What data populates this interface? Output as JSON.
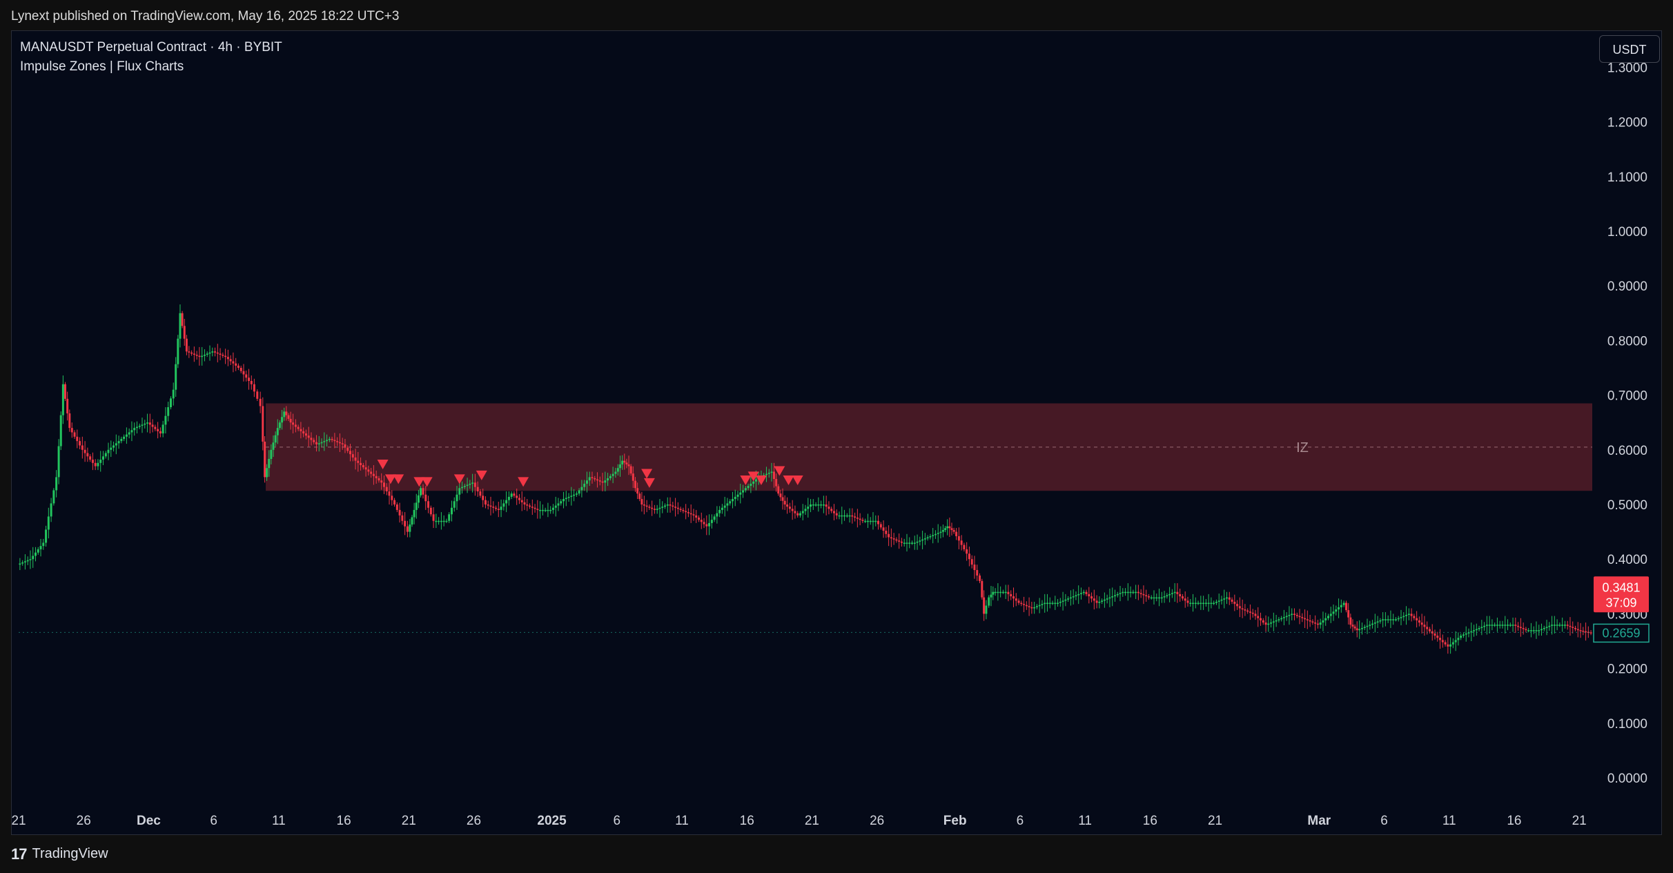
{
  "header": {
    "published_text": "Lynext published on TradingView.com, May 16, 2025 18:22 UTC+3"
  },
  "chart_legend": {
    "symbol_line": "MANAUSDT Perpetual Contract · 4h · BYBIT",
    "indicator_line": "Impulse Zones | Flux Charts"
  },
  "currency_button": "USDT",
  "footer": {
    "logo_glyph": "17",
    "brand": "TradingView"
  },
  "colors": {
    "background": "#050a18",
    "up": "#089981",
    "down": "#f23645",
    "zone_fill": "#4a1a26",
    "price_label_red": "#f23645",
    "price_label_green": "#22ab94"
  },
  "chart_data": {
    "type": "line",
    "title": "MANAUSDT Perpetual Contract · 4h · BYBIT",
    "ylim": [
      -0.05,
      1.32
    ],
    "y_ticks": [
      "1.3000",
      "1.2000",
      "1.1000",
      "1.0000",
      "0.9000",
      "0.8000",
      "0.7000",
      "0.6000",
      "0.5000",
      "0.4000",
      "0.3000",
      "0.2000",
      "0.1000",
      "0.0000"
    ],
    "y_tick_values": [
      1.3,
      1.2,
      1.1,
      1.0,
      0.9,
      0.8,
      0.7,
      0.6,
      0.5,
      0.4,
      0.3,
      0.2,
      0.1,
      0.0
    ],
    "x_ticks": [
      "21",
      "26",
      "Dec",
      "6",
      "11",
      "16",
      "21",
      "26",
      "2025",
      "6",
      "11",
      "16",
      "21",
      "26",
      "Feb",
      "6",
      "11",
      "16",
      "21",
      "Mar",
      "6",
      "11",
      "16",
      "21"
    ],
    "x_tick_days": [
      0,
      5,
      10,
      15,
      20,
      25,
      30,
      35,
      41,
      46,
      51,
      56,
      61,
      66,
      72,
      77,
      82,
      87,
      92,
      100,
      105,
      110,
      115,
      120
    ],
    "x_domain_days": [
      0,
      121
    ],
    "x_axis_note": "days since Nov 21, 2024",
    "price_series": [
      [
        0,
        0.39
      ],
      [
        1,
        0.4
      ],
      [
        2,
        0.43
      ],
      [
        3,
        0.55
      ],
      [
        3.5,
        0.72
      ],
      [
        4,
        0.64
      ],
      [
        5,
        0.6
      ],
      [
        6,
        0.57
      ],
      [
        7,
        0.6
      ],
      [
        8,
        0.62
      ],
      [
        9,
        0.64
      ],
      [
        10,
        0.65
      ],
      [
        11,
        0.63
      ],
      [
        12,
        0.71
      ],
      [
        12.5,
        0.85
      ],
      [
        13,
        0.78
      ],
      [
        14,
        0.77
      ],
      [
        15,
        0.78
      ],
      [
        16,
        0.77
      ],
      [
        17,
        0.75
      ],
      [
        18,
        0.72
      ],
      [
        18.7,
        0.68
      ],
      [
        19,
        0.55
      ],
      [
        19.5,
        0.6
      ],
      [
        20,
        0.64
      ],
      [
        20.5,
        0.67
      ],
      [
        21,
        0.65
      ],
      [
        22,
        0.63
      ],
      [
        23,
        0.61
      ],
      [
        24,
        0.62
      ],
      [
        25,
        0.61
      ],
      [
        26,
        0.58
      ],
      [
        27,
        0.56
      ],
      [
        28,
        0.54
      ],
      [
        29,
        0.5
      ],
      [
        30,
        0.45
      ],
      [
        30.5,
        0.49
      ],
      [
        31,
        0.53
      ],
      [
        32,
        0.47
      ],
      [
        33,
        0.47
      ],
      [
        34,
        0.53
      ],
      [
        35,
        0.54
      ],
      [
        36,
        0.5
      ],
      [
        37,
        0.49
      ],
      [
        38,
        0.52
      ],
      [
        39,
        0.5
      ],
      [
        40,
        0.49
      ],
      [
        41,
        0.49
      ],
      [
        42,
        0.51
      ],
      [
        43,
        0.52
      ],
      [
        44,
        0.55
      ],
      [
        45,
        0.54
      ],
      [
        46,
        0.56
      ],
      [
        46.5,
        0.58
      ],
      [
        47,
        0.57
      ],
      [
        47.5,
        0.53
      ],
      [
        48,
        0.5
      ],
      [
        49,
        0.49
      ],
      [
        50,
        0.5
      ],
      [
        51,
        0.49
      ],
      [
        52,
        0.48
      ],
      [
        53,
        0.46
      ],
      [
        54,
        0.49
      ],
      [
        55,
        0.51
      ],
      [
        56,
        0.53
      ],
      [
        57,
        0.55
      ],
      [
        58,
        0.56
      ],
      [
        58.5,
        0.52
      ],
      [
        59,
        0.5
      ],
      [
        60,
        0.48
      ],
      [
        61,
        0.5
      ],
      [
        62,
        0.5
      ],
      [
        63,
        0.48
      ],
      [
        64,
        0.48
      ],
      [
        65,
        0.47
      ],
      [
        66,
        0.47
      ],
      [
        67,
        0.44
      ],
      [
        68,
        0.43
      ],
      [
        69,
        0.43
      ],
      [
        70,
        0.44
      ],
      [
        71,
        0.45
      ],
      [
        71.5,
        0.46
      ],
      [
        72,
        0.45
      ],
      [
        73,
        0.41
      ],
      [
        74,
        0.36
      ],
      [
        74.3,
        0.3
      ],
      [
        74.7,
        0.33
      ],
      [
        75,
        0.34
      ],
      [
        76,
        0.34
      ],
      [
        77,
        0.32
      ],
      [
        78,
        0.31
      ],
      [
        79,
        0.32
      ],
      [
        80,
        0.32
      ],
      [
        81,
        0.33
      ],
      [
        82,
        0.34
      ],
      [
        83,
        0.32
      ],
      [
        84,
        0.33
      ],
      [
        85,
        0.34
      ],
      [
        86,
        0.34
      ],
      [
        87,
        0.33
      ],
      [
        88,
        0.33
      ],
      [
        89,
        0.34
      ],
      [
        90,
        0.32
      ],
      [
        91,
        0.32
      ],
      [
        92,
        0.32
      ],
      [
        93,
        0.33
      ],
      [
        94,
        0.31
      ],
      [
        95,
        0.3
      ],
      [
        96,
        0.28
      ],
      [
        97,
        0.29
      ],
      [
        98,
        0.3
      ],
      [
        99,
        0.29
      ],
      [
        100,
        0.28
      ],
      [
        101,
        0.3
      ],
      [
        102,
        0.32
      ],
      [
        102.5,
        0.28
      ],
      [
        103,
        0.27
      ],
      [
        104,
        0.28
      ],
      [
        105,
        0.29
      ],
      [
        106,
        0.29
      ],
      [
        107,
        0.3
      ],
      [
        108,
        0.28
      ],
      [
        109,
        0.26
      ],
      [
        110,
        0.24
      ],
      [
        111,
        0.26
      ],
      [
        112,
        0.27
      ],
      [
        113,
        0.28
      ],
      [
        114,
        0.28
      ],
      [
        115,
        0.28
      ],
      [
        116,
        0.27
      ],
      [
        117,
        0.27
      ],
      [
        118,
        0.28
      ],
      [
        119,
        0.28
      ],
      [
        120,
        0.27
      ],
      [
        121,
        0.265
      ]
    ],
    "impulse_zone": {
      "label": "IZ",
      "start_day": 19,
      "end_day": 121,
      "top": 0.685,
      "bottom": 0.525,
      "mid": 0.605
    },
    "signal_markers": [
      {
        "day": 28.0,
        "price": 0.572
      },
      {
        "day": 28.6,
        "price": 0.545
      },
      {
        "day": 29.2,
        "price": 0.545
      },
      {
        "day": 30.8,
        "price": 0.54
      },
      {
        "day": 31.4,
        "price": 0.54
      },
      {
        "day": 33.9,
        "price": 0.545
      },
      {
        "day": 35.6,
        "price": 0.552
      },
      {
        "day": 38.8,
        "price": 0.54
      },
      {
        "day": 48.3,
        "price": 0.555
      },
      {
        "day": 48.5,
        "price": 0.538
      },
      {
        "day": 55.9,
        "price": 0.543
      },
      {
        "day": 56.5,
        "price": 0.55
      },
      {
        "day": 57.1,
        "price": 0.543
      },
      {
        "day": 58.5,
        "price": 0.56
      },
      {
        "day": 59.2,
        "price": 0.543
      },
      {
        "day": 59.9,
        "price": 0.543
      }
    ],
    "price_labels": [
      {
        "value": 0.3481,
        "text": "0.3481",
        "countdown": "37:09",
        "color": "red"
      },
      {
        "value": 0.2659,
        "text": "0.2659",
        "color": "green"
      }
    ],
    "grid": false,
    "legend_placement": "top-left"
  }
}
